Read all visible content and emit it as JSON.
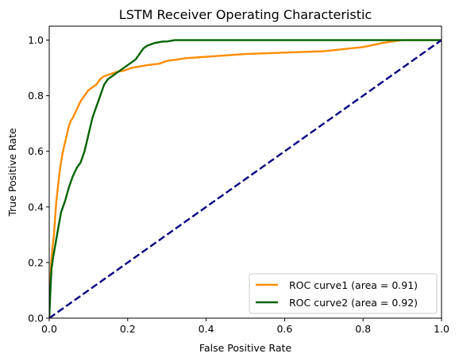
{
  "chart_data": {
    "type": "line",
    "title": "LSTM Receiver Operating Characteristic",
    "xlabel": "False Positive Rate",
    "ylabel": "True Positive Rate",
    "xlim": [
      0.0,
      1.0
    ],
    "ylim": [
      0.0,
      1.05
    ],
    "xticks": [
      "0.0",
      "0.2",
      "0.4",
      "0.6",
      "0.8",
      "1.0"
    ],
    "yticks": [
      "0.0",
      "0.2",
      "0.4",
      "0.6",
      "0.8",
      "1.0"
    ],
    "grid": false,
    "legend_position": "lower-right",
    "series": [
      {
        "name": "ROC curve1 (area = 0.91)",
        "color": "#ff8c00",
        "style": "solid",
        "x": [
          0.0,
          0.002,
          0.005,
          0.008,
          0.012,
          0.015,
          0.018,
          0.022,
          0.026,
          0.03,
          0.035,
          0.04,
          0.045,
          0.05,
          0.055,
          0.06,
          0.07,
          0.08,
          0.09,
          0.1,
          0.11,
          0.12,
          0.13,
          0.14,
          0.15,
          0.17,
          0.19,
          0.21,
          0.23,
          0.25,
          0.28,
          0.3,
          0.35,
          0.4,
          0.45,
          0.5,
          0.6,
          0.7,
          0.8,
          0.85,
          0.9,
          1.0
        ],
        "y": [
          0.0,
          0.1,
          0.2,
          0.25,
          0.3,
          0.36,
          0.42,
          0.47,
          0.52,
          0.56,
          0.6,
          0.63,
          0.66,
          0.69,
          0.71,
          0.72,
          0.75,
          0.78,
          0.8,
          0.82,
          0.83,
          0.84,
          0.86,
          0.87,
          0.875,
          0.885,
          0.89,
          0.9,
          0.905,
          0.91,
          0.915,
          0.925,
          0.935,
          0.94,
          0.945,
          0.95,
          0.955,
          0.96,
          0.975,
          0.99,
          1.0,
          1.0
        ]
      },
      {
        "name": "ROC curve2 (area = 0.92)",
        "color": "#006400",
        "style": "solid",
        "x": [
          0.0,
          0.003,
          0.006,
          0.01,
          0.015,
          0.02,
          0.025,
          0.03,
          0.04,
          0.05,
          0.06,
          0.07,
          0.08,
          0.09,
          0.1,
          0.11,
          0.12,
          0.13,
          0.14,
          0.15,
          0.16,
          0.17,
          0.18,
          0.19,
          0.2,
          0.21,
          0.22,
          0.23,
          0.24,
          0.25,
          0.27,
          0.29,
          0.3,
          0.32,
          0.35,
          0.4,
          0.5,
          0.6,
          0.8,
          1.0
        ],
        "y": [
          0.0,
          0.1,
          0.18,
          0.22,
          0.26,
          0.3,
          0.34,
          0.38,
          0.42,
          0.47,
          0.51,
          0.54,
          0.56,
          0.6,
          0.66,
          0.72,
          0.76,
          0.8,
          0.84,
          0.86,
          0.87,
          0.88,
          0.89,
          0.9,
          0.91,
          0.92,
          0.93,
          0.95,
          0.97,
          0.98,
          0.99,
          0.995,
          0.995,
          1.0,
          1.0,
          1.0,
          1.0,
          1.0,
          1.0,
          1.0
        ]
      },
      {
        "name": "",
        "color": "#000080",
        "style": "dashed",
        "x": [
          0.0,
          1.0
        ],
        "y": [
          0.0,
          1.0
        ]
      }
    ]
  }
}
